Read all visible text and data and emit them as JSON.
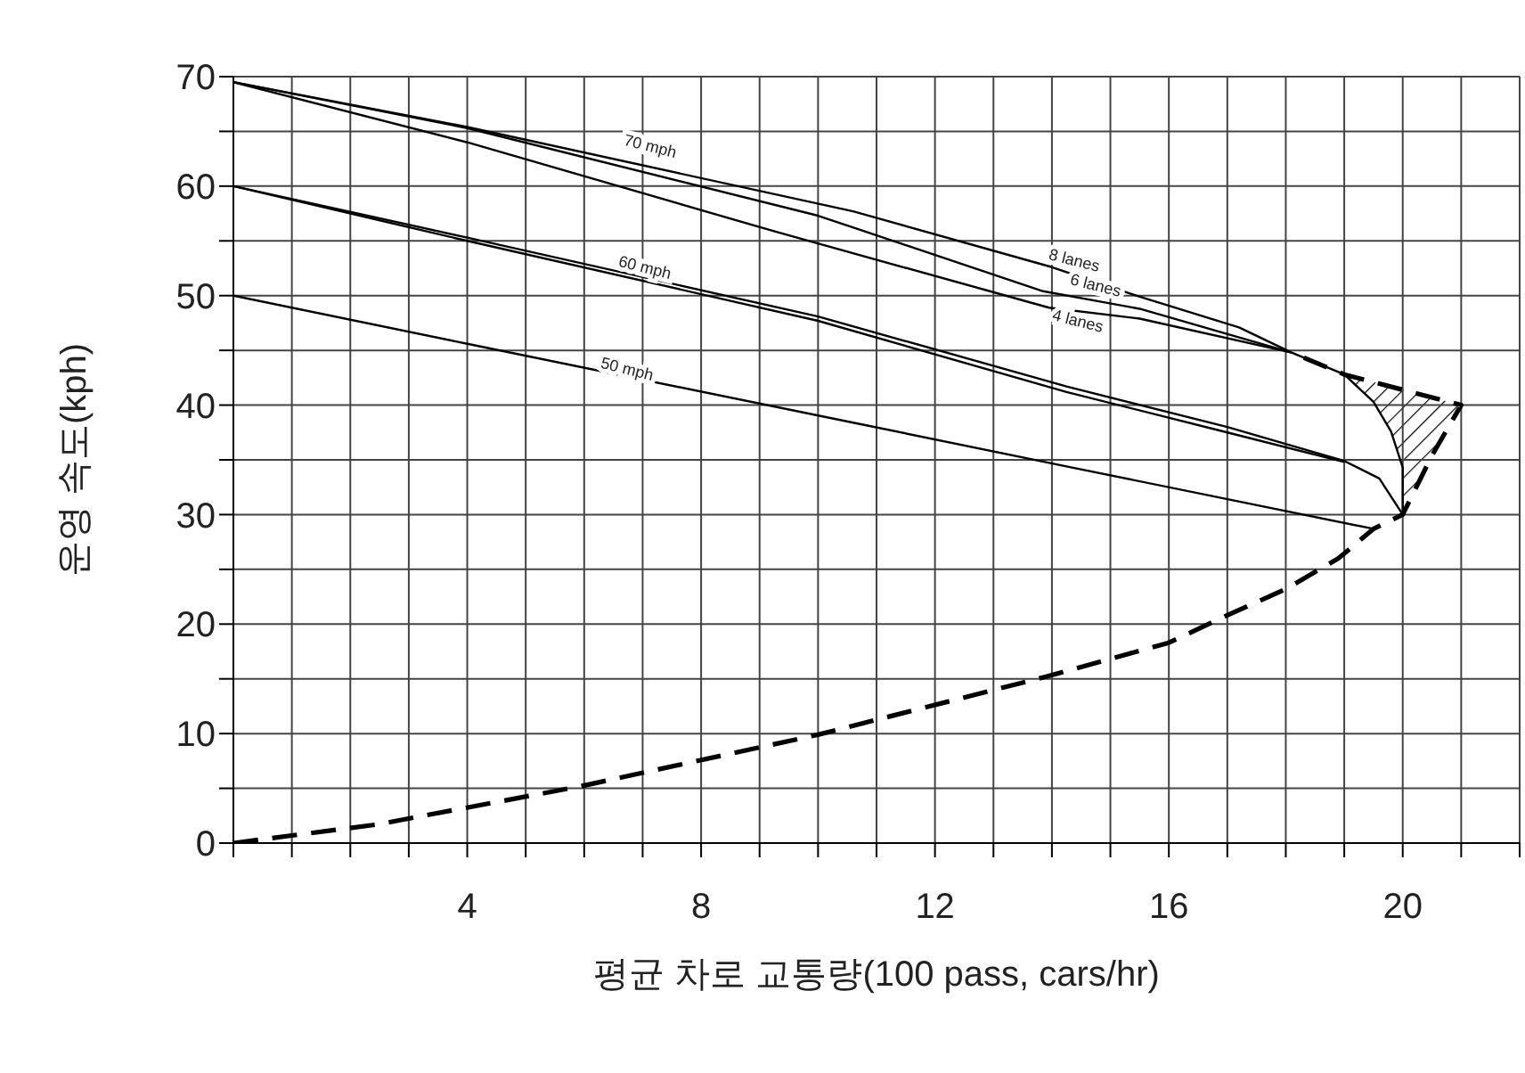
{
  "chart_data": {
    "type": "line",
    "xlabel": "평균 차로 교통량(100 pass, cars/hr)",
    "ylabel": "운영 속도(kph)",
    "xlim": [
      0,
      22
    ],
    "xticks": [
      {
        "value": 0,
        "label": null
      },
      {
        "value": 1,
        "label": null
      },
      {
        "value": 2,
        "label": null
      },
      {
        "value": 3,
        "label": null
      },
      4,
      {
        "value": 5,
        "label": null
      },
      {
        "value": 6,
        "label": null
      },
      {
        "value": 7,
        "label": null
      },
      8,
      {
        "value": 9,
        "label": null
      },
      {
        "value": 10,
        "label": null
      },
      {
        "value": 11,
        "label": null
      },
      12,
      {
        "value": 13,
        "label": null
      },
      {
        "value": 14,
        "label": null
      },
      {
        "value": 15,
        "label": null
      },
      16,
      {
        "value": 17,
        "label": null
      },
      {
        "value": 18,
        "label": null
      },
      {
        "value": 19,
        "label": null
      },
      20,
      {
        "value": 21,
        "label": null
      },
      {
        "value": 22,
        "label": null
      }
    ],
    "ylim": [
      0,
      70
    ],
    "yticks": [
      0,
      {
        "value": 5,
        "label": null
      },
      10,
      {
        "value": 15,
        "label": null
      },
      20,
      {
        "value": 25,
        "label": null
      },
      30,
      {
        "value": 35,
        "label": null
      },
      40,
      {
        "value": 45,
        "label": null
      },
      50,
      {
        "value": 55,
        "label": null
      },
      60,
      {
        "value": 65,
        "label": null
      },
      70
    ],
    "grid": true,
    "marker": "none",
    "series": [
      {
        "color": "#000000",
        "x": [
          0,
          4,
          10.6,
          14,
          15.5,
          17.2,
          18.1,
          19,
          19.5,
          19.8,
          20,
          20
        ],
        "values": [
          69.5,
          65.4,
          57.7,
          52.6,
          49.9,
          47.1,
          44.8,
          42.8,
          40.3,
          37.6,
          34.3,
          30
        ]
      },
      {
        "color": "#000000",
        "x": [
          0,
          4,
          10,
          13.85,
          15.5,
          18.1
        ],
        "values": [
          69.5,
          65.3,
          57.3,
          50.4,
          48.8,
          44.8
        ]
      },
      {
        "color": "#000000",
        "x": [
          0,
          4,
          9.3,
          13.95,
          15.5,
          18.1
        ],
        "values": [
          69.5,
          64,
          55.8,
          48.9,
          47.9,
          44.8
        ]
      },
      {
        "color": "#000000",
        "x": [
          0,
          4,
          10,
          14.25,
          17,
          19,
          19.6,
          20
        ],
        "values": [
          60,
          55.3,
          48.1,
          41.7,
          38,
          34.9,
          33.3,
          30
        ]
      },
      {
        "color": "#000000",
        "x": [
          0,
          4,
          10,
          14.25,
          17,
          19
        ],
        "values": [
          60,
          55,
          47.7,
          41.2,
          37.5,
          34.8
        ]
      },
      {
        "color": "#000000",
        "x": [
          0,
          4,
          10.6,
          14.25,
          19.5
        ],
        "values": [
          50,
          45.6,
          38.4,
          34.4,
          28.7
        ]
      },
      {
        "color": "#000000",
        "line_style": "dashed",
        "x": [
          0,
          2.46,
          5.95,
          10,
          13.9,
          16,
          17,
          18,
          18.9,
          19.5,
          20,
          20.5,
          21,
          19,
          18.1
        ],
        "values": [
          0,
          1.7,
          5.2,
          9.9,
          15.2,
          18.3,
          20.8,
          23.2,
          26,
          28.7,
          30,
          35.4,
          40,
          42.8,
          44.8
        ]
      },
      {
        "type": "area",
        "color": "#000000",
        "x": [
          19,
          19.5,
          19.8,
          20,
          20,
          20.5,
          21
        ],
        "values": [
          42.8,
          40.3,
          37.6,
          34.3,
          30,
          35.4,
          40
        ]
      }
    ],
    "annotations": [
      "70 mph",
      "60 mph",
      "50 mph",
      "8 lanes",
      "6 lanes",
      "4 lanes"
    ]
  }
}
